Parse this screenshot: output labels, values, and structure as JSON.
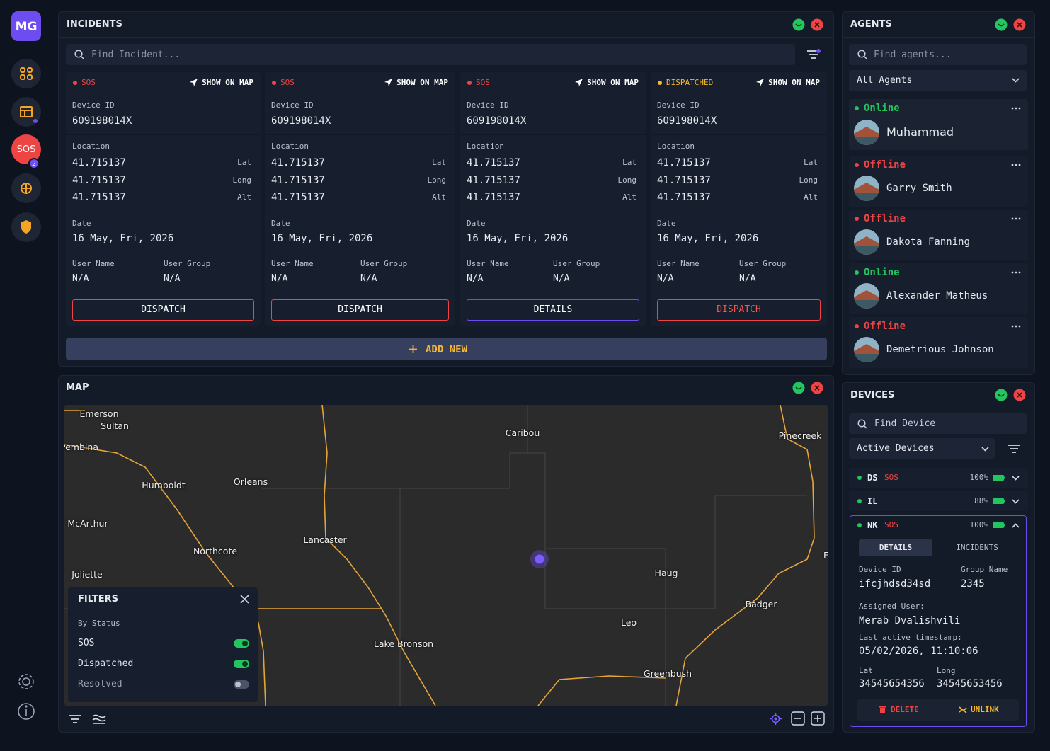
{
  "sidebar": {
    "logo": "MG",
    "sos": "SOS",
    "sos_badge": "2"
  },
  "incidents": {
    "title": "INCIDENTS",
    "search": "Find Incident...",
    "show_on_map": "SHOW ON MAP",
    "add_new": "ADD NEW",
    "labels": {
      "device_id": "Device ID",
      "location": "Location",
      "lat": "Lat",
      "long": "Long",
      "alt": "Alt",
      "date": "Date",
      "user_name": "User Name",
      "user_group": "User Group"
    },
    "cards": [
      {
        "status": "SOS",
        "status_color": "#ef4444",
        "device_id": "609198014X",
        "lat": "41.715137",
        "long": "41.715137",
        "alt": "41.715137",
        "date": "16 May, Fri, 2026",
        "user_name": "N/A",
        "user_group": "N/A",
        "action": "DISPATCH",
        "action_border": "#ef4444",
        "action_color": "#ffffff"
      },
      {
        "status": "SOS",
        "status_color": "#ef4444",
        "device_id": "609198014X",
        "lat": "41.715137",
        "long": "41.715137",
        "alt": "41.715137",
        "date": "16 May, Fri, 2026",
        "user_name": "N/A",
        "user_group": "N/A",
        "action": "DISPATCH",
        "action_border": "#ef4444",
        "action_color": "#ffffff"
      },
      {
        "status": "SOS",
        "status_color": "#ef4444",
        "device_id": "609198014X",
        "lat": "41.715137",
        "long": "41.715137",
        "alt": "41.715137",
        "date": "16 May, Fri, 2026",
        "user_name": "N/A",
        "user_group": "N/A",
        "action": "DETAILS",
        "action_border": "#6d4cf0",
        "action_color": "#ffffff"
      },
      {
        "status": "DISPATCHED",
        "status_color": "#f5b82e",
        "device_id": "609198014X",
        "lat": "41.715137",
        "long": "41.715137",
        "alt": "41.715137",
        "date": "16 May, Fri, 2026",
        "user_name": "N/A",
        "user_group": "N/A",
        "action": "DISPATCH",
        "action_border": "#ef4444",
        "action_color": "#f25a4a"
      }
    ]
  },
  "map": {
    "title": "MAP",
    "places": [
      "Emerson",
      "Sultan",
      "Pembina",
      "Caribou",
      "Pinecreek",
      "Humboldt",
      "Orleans",
      "McArthur",
      "Lancaster",
      "Northcote",
      "Joliette",
      "Haug",
      "Fosston",
      "Badger",
      "Leo",
      "Lake Bronson",
      "Greenbush"
    ],
    "filters": {
      "title": "FILTERS",
      "by_status": "By Status",
      "options": [
        {
          "label": "SOS",
          "on": true
        },
        {
          "label": "Dispatched",
          "on": true
        },
        {
          "label": "Resolved",
          "on": false
        }
      ]
    }
  },
  "agents": {
    "title": "AGENTS",
    "search": "Find agents...",
    "filter": "All Agents",
    "list": [
      {
        "status": "Online",
        "status_color": "#22c55e",
        "name": "Muhammad"
      },
      {
        "status": "Offline",
        "status_color": "#ef4444",
        "name": "Garry Smith"
      },
      {
        "status": "Offline",
        "status_color": "#ef4444",
        "name": "Dakota Fanning"
      },
      {
        "status": "Online",
        "status_color": "#22c55e",
        "name": "Alexander Matheus"
      },
      {
        "status": "Offline",
        "status_color": "#ef4444",
        "name": "Demetrious Johnson"
      }
    ]
  },
  "devices": {
    "title": "DEVICES",
    "search": "Find Device",
    "filter": "Active Devices",
    "rows": [
      {
        "code": "DS",
        "alert": "SOS",
        "battery": "100%"
      },
      {
        "code": "IL",
        "alert": null,
        "battery": "88%"
      },
      {
        "code": "NK",
        "alert": "SOS",
        "battery": "100%"
      }
    ],
    "detail": {
      "tabs": [
        "DETAILS",
        "INCIDENTS"
      ],
      "device_id_label": "Device ID",
      "device_id": "ifcjhdsd34sd",
      "group_label": "Group Name",
      "group": "2345",
      "assigned_label": "Assigned User:",
      "assigned": "Merab Dvalishvili",
      "timestamp_label": "Last active timestamp:",
      "timestamp": "05/02/2026, 11:10:06",
      "lat_label": "Lat",
      "lat": "34545654356",
      "long_label": "Long",
      "long": "34545653456",
      "delete": "DELETE",
      "unlink": "UNLINK"
    }
  }
}
